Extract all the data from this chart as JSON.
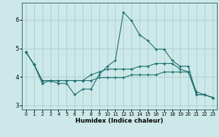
{
  "xlabel": "Humidex (Indice chaleur)",
  "background_color": "#cce8e8",
  "grid_color": "#aacccc",
  "line_color": "#1a6b6b",
  "x_values": [
    0,
    1,
    2,
    3,
    4,
    5,
    6,
    7,
    8,
    9,
    10,
    11,
    12,
    13,
    14,
    15,
    16,
    17,
    18,
    19,
    20,
    21,
    22,
    23
  ],
  "line1": [
    4.87,
    4.43,
    3.77,
    3.87,
    3.77,
    3.77,
    3.37,
    3.57,
    3.57,
    4.07,
    4.37,
    4.57,
    6.27,
    5.97,
    5.47,
    5.27,
    4.97,
    4.97,
    4.57,
    4.37,
    4.37,
    3.37,
    3.37,
    3.27
  ],
  "line2": [
    4.87,
    4.43,
    3.87,
    3.87,
    3.87,
    3.87,
    3.87,
    3.87,
    4.07,
    4.17,
    4.27,
    4.27,
    4.27,
    4.27,
    4.37,
    4.37,
    4.47,
    4.47,
    4.47,
    4.27,
    4.17,
    3.37,
    3.37,
    3.27
  ],
  "line3": [
    4.87,
    4.43,
    3.87,
    3.87,
    3.87,
    3.87,
    3.87,
    3.87,
    3.87,
    3.97,
    3.97,
    3.97,
    3.97,
    4.07,
    4.07,
    4.07,
    4.07,
    4.17,
    4.17,
    4.17,
    4.17,
    3.47,
    3.37,
    3.27
  ],
  "ylim": [
    2.85,
    6.6
  ],
  "xlim": [
    -0.5,
    23.5
  ],
  "yticks": [
    3,
    4,
    5,
    6
  ],
  "xticks": [
    0,
    1,
    2,
    3,
    4,
    5,
    6,
    7,
    8,
    9,
    10,
    11,
    12,
    13,
    14,
    15,
    16,
    17,
    18,
    19,
    20,
    21,
    22,
    23
  ]
}
